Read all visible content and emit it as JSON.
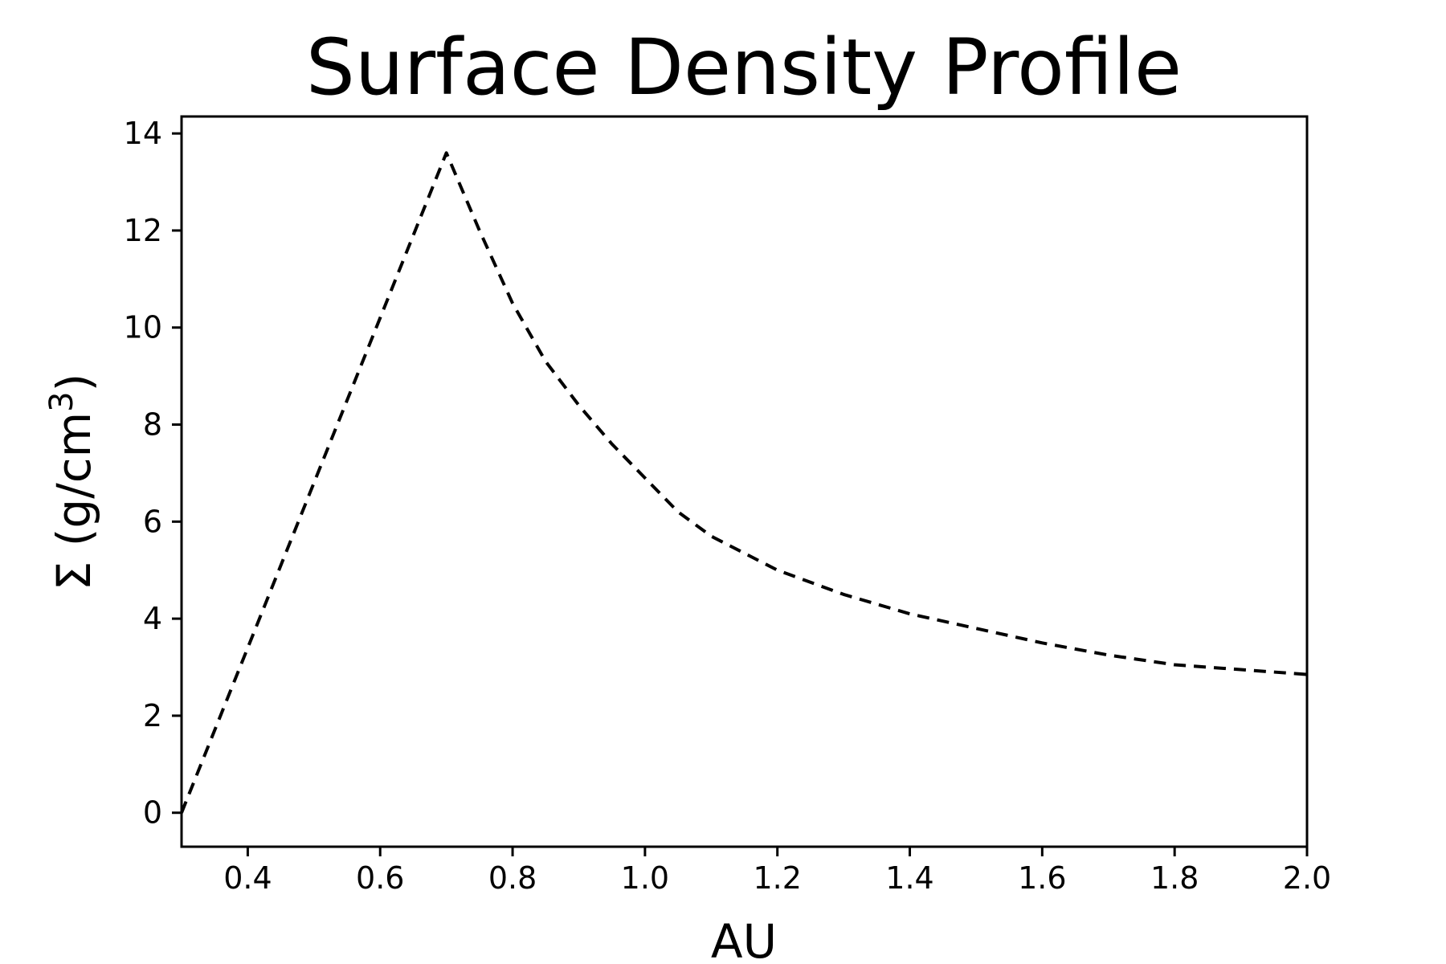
{
  "chart_data": {
    "type": "line",
    "title": "Surface Density Profile",
    "xlabel": "AU",
    "ylabel": {
      "text": "Σ (g/cm",
      "superscript": "3",
      "suffix": ")"
    },
    "xlim": [
      0.3,
      2.0
    ],
    "ylim": [
      -0.7,
      14.35
    ],
    "xticks": [
      0.4,
      0.6,
      0.8,
      1.0,
      1.2,
      1.4,
      1.6,
      1.8,
      2.0
    ],
    "xtick_labels": [
      "0.4",
      "0.6",
      "0.8",
      "1.0",
      "1.2",
      "1.4",
      "1.6",
      "1.8",
      "2.0"
    ],
    "yticks": [
      0,
      2,
      4,
      6,
      8,
      10,
      12,
      14
    ],
    "ytick_labels": [
      "0",
      "2",
      "4",
      "6",
      "8",
      "10",
      "12",
      "14"
    ],
    "grid": false,
    "series": [
      {
        "color": "#000000",
        "line_style": "dashed",
        "x": [
          0.3,
          0.4,
          0.5,
          0.6,
          0.7,
          0.75,
          0.8,
          0.85,
          0.9,
          0.95,
          1.0,
          1.05,
          1.1,
          1.2,
          1.3,
          1.4,
          1.5,
          1.6,
          1.7,
          1.8,
          1.9,
          2.0
        ],
        "y": [
          0.0,
          3.4,
          6.8,
          10.2,
          13.6,
          12.0,
          10.5,
          9.3,
          8.4,
          7.6,
          6.9,
          6.2,
          5.7,
          5.0,
          4.5,
          4.1,
          3.8,
          3.5,
          3.25,
          3.05,
          2.95,
          2.85
        ]
      }
    ]
  }
}
